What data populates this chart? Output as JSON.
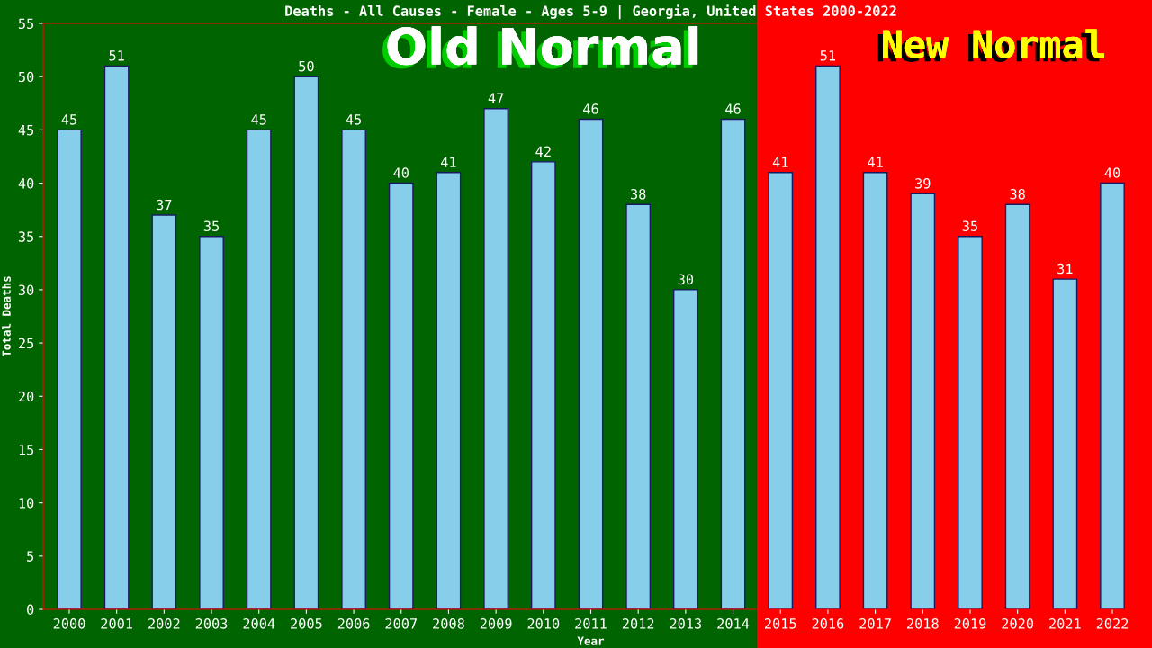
{
  "chart_data": {
    "type": "bar",
    "title": "Deaths - All Causes - Female - Ages 5-9 | Georgia, United States 2000-2022",
    "xlabel": "Year",
    "ylabel": "Total Deaths",
    "categories": [
      "2000",
      "2001",
      "2002",
      "2003",
      "2004",
      "2005",
      "2006",
      "2007",
      "2008",
      "2009",
      "2010",
      "2011",
      "2012",
      "2013",
      "2014",
      "2015",
      "2016",
      "2017",
      "2018",
      "2019",
      "2020",
      "2021",
      "2022"
    ],
    "values": [
      45,
      51,
      37,
      35,
      45,
      50,
      45,
      40,
      41,
      47,
      42,
      46,
      38,
      30,
      46,
      41,
      51,
      41,
      39,
      35,
      38,
      31,
      40
    ],
    "color": "#87ceeb",
    "data_labels": true,
    "grid": false,
    "legend": false,
    "ylim": [
      0,
      55
    ],
    "yticks": [
      0,
      5,
      10,
      15,
      20,
      25,
      30,
      35,
      40,
      45,
      50,
      55
    ],
    "bands": [
      {
        "axis": "x",
        "from": "2000",
        "to": "2014",
        "label": "Old Normal",
        "color": "#006400"
      },
      {
        "axis": "x",
        "from": "2015",
        "to": "2022",
        "label": "New Normal",
        "color": "#ff0000"
      }
    ]
  }
}
